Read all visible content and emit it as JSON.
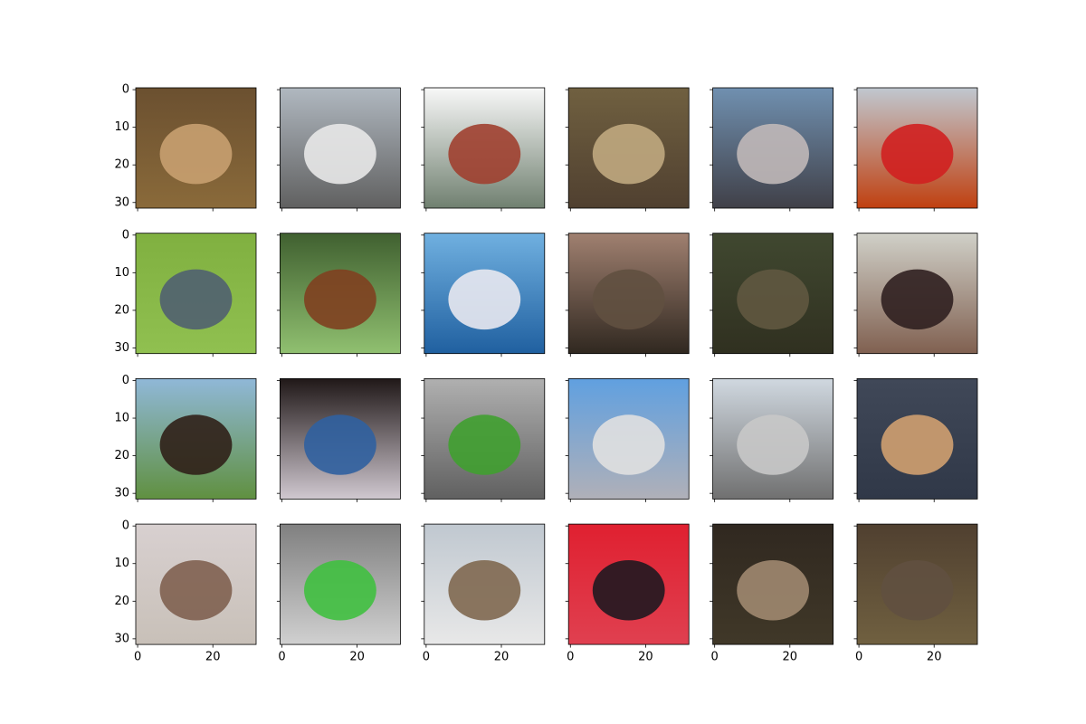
{
  "chart_data": {
    "type": "image_grid",
    "rows": 4,
    "cols": 6,
    "xlim": [
      -0.5,
      31.5
    ],
    "ylim": [
      31.5,
      -0.5
    ],
    "xticks": [
      0,
      20
    ],
    "yticks": [
      0,
      10,
      20,
      30
    ],
    "panels": [
      {
        "colors": [
          "#6b5030",
          "#8a6a3a",
          "#c8a070"
        ]
      },
      {
        "colors": [
          "#b0b8c0",
          "#606060",
          "#e8e8e8"
        ]
      },
      {
        "colors": [
          "#f8f8f8",
          "#708070",
          "#a04030"
        ]
      },
      {
        "colors": [
          "#706040",
          "#504030",
          "#c0a880"
        ]
      },
      {
        "colors": [
          "#7090b0",
          "#404048",
          "#c0b8b8"
        ]
      },
      {
        "colors": [
          "#c0c8d0",
          "#c04010",
          "#d02020"
        ]
      },
      {
        "colors": [
          "#80b040",
          "#90c050",
          "#506070"
        ]
      },
      {
        "colors": [
          "#406030",
          "#90c070",
          "#804020"
        ]
      },
      {
        "colors": [
          "#70b0e0",
          "#2060a0",
          "#e8e8f0"
        ]
      },
      {
        "colors": [
          "#a08070",
          "#302820",
          "#605040"
        ]
      },
      {
        "colors": [
          "#404830",
          "#303020",
          "#605840"
        ]
      },
      {
        "colors": [
          "#d0d0c8",
          "#806050",
          "#302020"
        ]
      },
      {
        "colors": [
          "#90b8d8",
          "#609040",
          "#302018"
        ]
      },
      {
        "colors": [
          "#201818",
          "#d0c8d0",
          "#3060a0"
        ]
      },
      {
        "colors": [
          "#b0b0b0",
          "#606060",
          "#40a030"
        ]
      },
      {
        "colors": [
          "#60a0e0",
          "#b0b0b8",
          "#e0e0e0"
        ]
      },
      {
        "colors": [
          "#d0d8e0",
          "#707070",
          "#c8c8c8"
        ]
      },
      {
        "colors": [
          "#404858",
          "#303848",
          "#d0a070"
        ]
      },
      {
        "colors": [
          "#d8d0d0",
          "#c8c0b8",
          "#806050"
        ]
      },
      {
        "colors": [
          "#808080",
          "#d0d0d0",
          "#40c040"
        ]
      },
      {
        "colors": [
          "#c0c8d0",
          "#e8e8e8",
          "#806850"
        ]
      },
      {
        "colors": [
          "#e02030",
          "#e04050",
          "#201820"
        ]
      },
      {
        "colors": [
          "#302820",
          "#403828",
          "#a08870"
        ]
      },
      {
        "colors": [
          "#504030",
          "#706040",
          "#605040"
        ]
      }
    ]
  }
}
